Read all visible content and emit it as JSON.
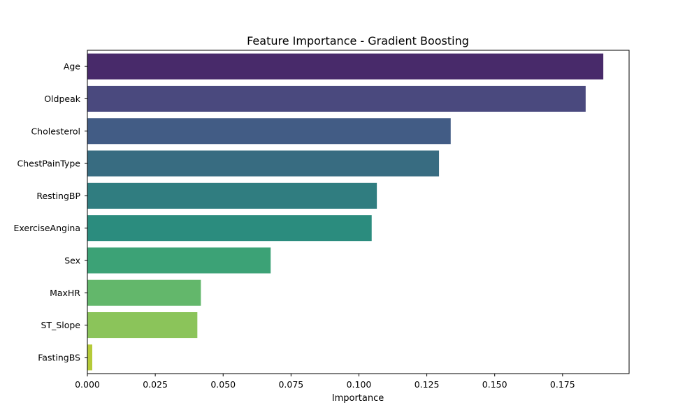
{
  "chart_data": {
    "type": "bar",
    "orientation": "horizontal",
    "title": "Feature Importance - Gradient Boosting",
    "xlabel": "Importance",
    "ylabel": "",
    "xlim": [
      0,
      0.1995
    ],
    "grid": false,
    "legend": "none",
    "x_ticks": [
      0,
      0.025,
      0.05,
      0.075,
      0.1,
      0.125,
      0.15,
      0.175
    ],
    "x_tick_labels": [
      "0.000",
      "0.025",
      "0.050",
      "0.075",
      "0.100",
      "0.125",
      "0.150",
      "0.175"
    ],
    "categories": [
      "Age",
      "Oldpeak",
      "Cholesterol",
      "ChestPainType",
      "RestingBP",
      "ExerciseAngina",
      "Sex",
      "MaxHR",
      "ST_Slope",
      "FastingBS"
    ],
    "values": [
      0.19,
      0.1835,
      0.1338,
      0.1295,
      0.1066,
      0.1047,
      0.0675,
      0.0418,
      0.0405,
      0.0018
    ],
    "colors": [
      "#482a6a",
      "#4a497e",
      "#425c85",
      "#386c81",
      "#307d80",
      "#2b8c7e",
      "#3ca276",
      "#63b76b",
      "#8bc45a",
      "#b5ca39"
    ]
  }
}
